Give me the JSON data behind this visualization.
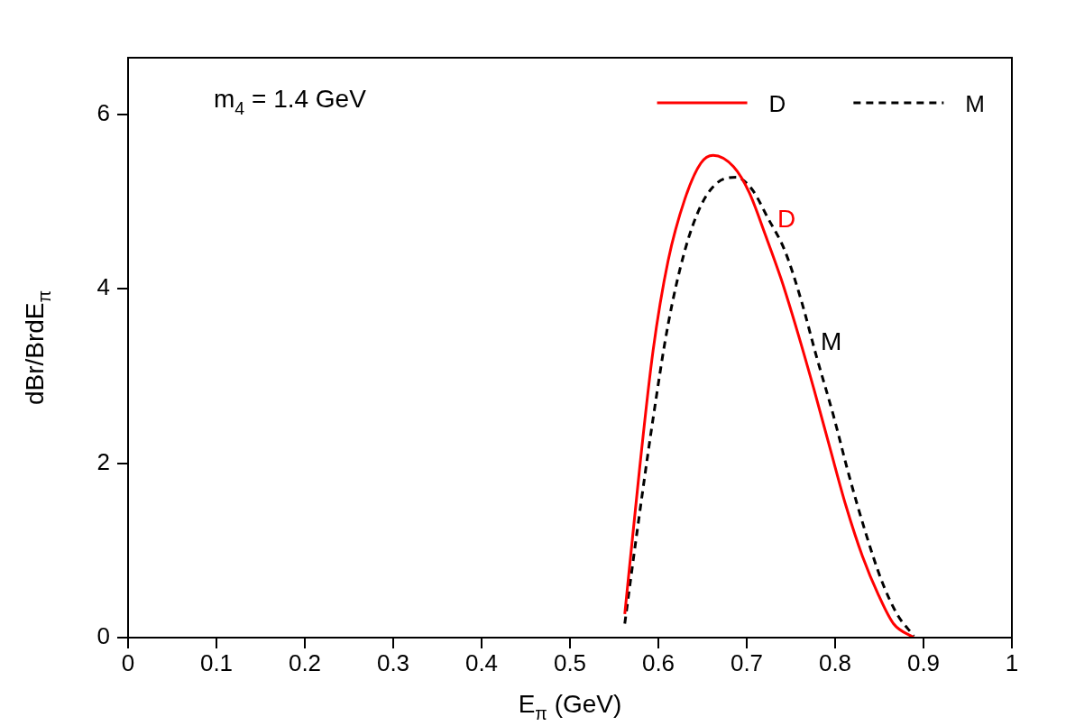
{
  "chart_data": {
    "type": "line",
    "xlabel": "E$_{π}$ (GeV)",
    "ylabel": "dBr/BrdE$_{π}$",
    "xlim": [
      0,
      1
    ],
    "xticks": [
      0,
      0.1,
      0.2,
      0.3,
      0.4,
      0.5,
      0.6,
      0.7,
      0.8,
      0.9,
      1
    ],
    "ylim": [
      0,
      6.65
    ],
    "yticks": [
      0,
      2,
      4,
      6
    ],
    "grid": false,
    "legend": "top right",
    "marker": "none",
    "annotations": [
      "m$_{4}$ = 1.4 GeV",
      "D",
      "M"
    ],
    "series": [
      {
        "name": "D",
        "color": "#ff0000",
        "line_style": "solid",
        "x": [
          0.562,
          0.579,
          0.594,
          0.611,
          0.63,
          0.648,
          0.662,
          0.685,
          0.703,
          0.721,
          0.739,
          0.757,
          0.776,
          0.794,
          0.812,
          0.831,
          0.849,
          0.866,
          0.889
        ],
        "values": [
          0.27,
          1.96,
          3.29,
          4.32,
          5.03,
          5.44,
          5.53,
          5.4,
          5.1,
          4.62,
          4.11,
          3.52,
          2.85,
          2.18,
          1.52,
          0.93,
          0.49,
          0.16,
          0
        ]
      },
      {
        "name": "M",
        "color": "#000000",
        "line_style": "dashed",
        "x": [
          0.562,
          0.576,
          0.594,
          0.611,
          0.63,
          0.648,
          0.666,
          0.688,
          0.706,
          0.724,
          0.743,
          0.761,
          0.779,
          0.798,
          0.816,
          0.834,
          0.852,
          0.87,
          0.889
        ],
        "values": [
          0.16,
          1.22,
          2.51,
          3.59,
          4.44,
          4.95,
          5.21,
          5.28,
          5.14,
          4.81,
          4.44,
          3.89,
          3.22,
          2.55,
          1.85,
          1.22,
          0.67,
          0.27,
          0.02
        ]
      }
    ]
  }
}
